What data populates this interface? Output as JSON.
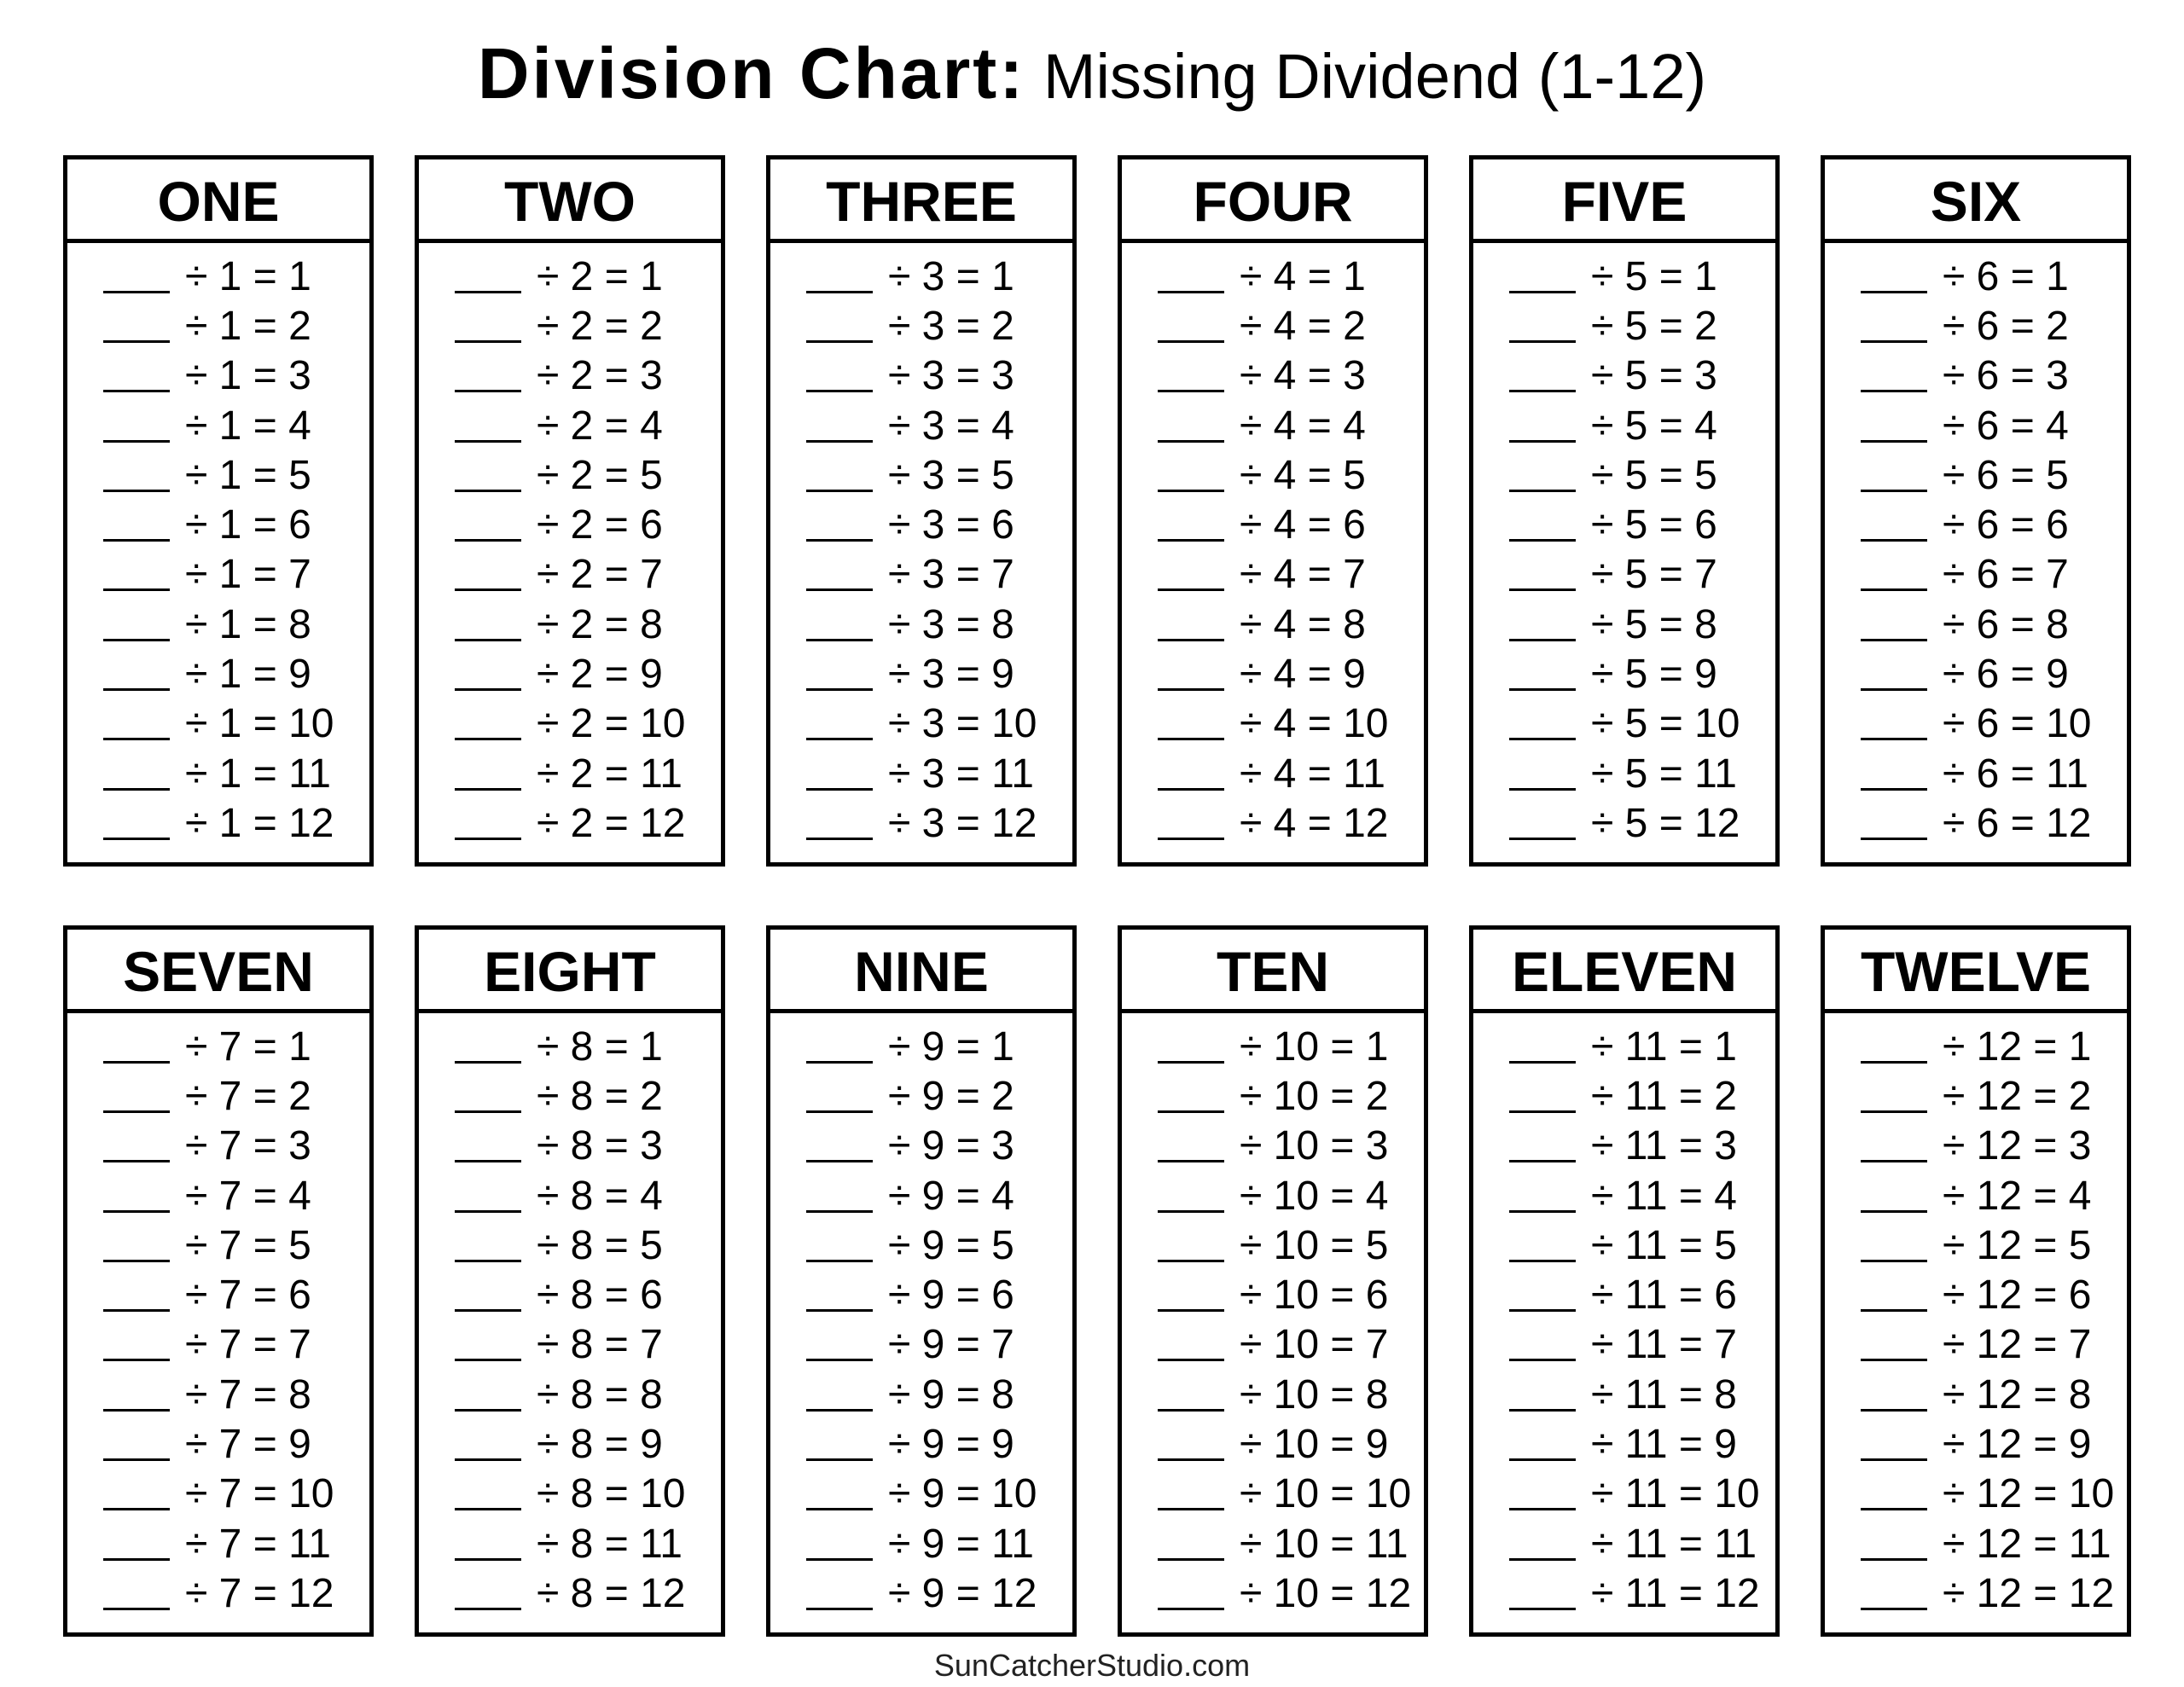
{
  "title": {
    "bold": "Division Chart:",
    "normal": " Missing Dividend (1-12)"
  },
  "footer": "SunCatcherStudio.com",
  "tables": [
    {
      "name": "ONE",
      "rows": [
        "÷ 1 = 1",
        "÷ 1 = 2",
        "÷ 1 = 3",
        "÷ 1 = 4",
        "÷ 1 = 5",
        "÷ 1 = 6",
        "÷ 1 = 7",
        "÷ 1 = 8",
        "÷ 1 = 9",
        "÷ 1 = 10",
        "÷ 1 = 11",
        "÷ 1 = 12"
      ]
    },
    {
      "name": "TWO",
      "rows": [
        "÷ 2 = 1",
        "÷ 2 = 2",
        "÷ 2 = 3",
        "÷ 2 = 4",
        "÷ 2 = 5",
        "÷ 2 = 6",
        "÷ 2 = 7",
        "÷ 2 = 8",
        "÷ 2 = 9",
        "÷ 2 = 10",
        "÷ 2 = 11",
        "÷ 2 = 12"
      ]
    },
    {
      "name": "THREE",
      "rows": [
        "÷ 3 = 1",
        "÷ 3 = 2",
        "÷ 3 = 3",
        "÷ 3 = 4",
        "÷ 3 = 5",
        "÷ 3 = 6",
        "÷ 3 = 7",
        "÷ 3 = 8",
        "÷ 3 = 9",
        "÷ 3 = 10",
        "÷ 3 = 11",
        "÷ 3 = 12"
      ]
    },
    {
      "name": "FOUR",
      "rows": [
        "÷ 4 = 1",
        "÷ 4 = 2",
        "÷ 4 = 3",
        "÷ 4 = 4",
        "÷ 4 = 5",
        "÷ 4 = 6",
        "÷ 4 = 7",
        "÷ 4 = 8",
        "÷ 4 = 9",
        "÷ 4 = 10",
        "÷ 4 = 11",
        "÷ 4 = 12"
      ]
    },
    {
      "name": "FIVE",
      "rows": [
        "÷ 5 = 1",
        "÷ 5 = 2",
        "÷ 5 = 3",
        "÷ 5 = 4",
        "÷ 5 = 5",
        "÷ 5 = 6",
        "÷ 5 = 7",
        "÷ 5 = 8",
        "÷ 5 = 9",
        "÷ 5 = 10",
        "÷ 5 = 11",
        "÷ 5 = 12"
      ]
    },
    {
      "name": "SIX",
      "rows": [
        "÷ 6 = 1",
        "÷ 6 = 2",
        "÷ 6 = 3",
        "÷ 6 = 4",
        "÷ 6 = 5",
        "÷ 6 = 6",
        "÷ 6 = 7",
        "÷ 6 = 8",
        "÷ 6 = 9",
        "÷ 6 = 10",
        "÷ 6 = 11",
        "÷ 6 = 12"
      ]
    },
    {
      "name": "SEVEN",
      "rows": [
        "÷ 7 = 1",
        "÷ 7 = 2",
        "÷ 7 = 3",
        "÷ 7 = 4",
        "÷ 7 = 5",
        "÷ 7 = 6",
        "÷ 7 = 7",
        "÷ 7 = 8",
        "÷ 7 = 9",
        "÷ 7 = 10",
        "÷ 7 = 11",
        "÷ 7 = 12"
      ]
    },
    {
      "name": "EIGHT",
      "rows": [
        "÷ 8 = 1",
        "÷ 8 = 2",
        "÷ 8 = 3",
        "÷ 8 = 4",
        "÷ 8 = 5",
        "÷ 8 = 6",
        "÷ 8 = 7",
        "÷ 8 = 8",
        "÷ 8 = 9",
        "÷ 8 = 10",
        "÷ 8 = 11",
        "÷ 8 = 12"
      ]
    },
    {
      "name": "NINE",
      "rows": [
        "÷ 9 = 1",
        "÷ 9 = 2",
        "÷ 9 = 3",
        "÷ 9 = 4",
        "÷ 9 = 5",
        "÷ 9 = 6",
        "÷ 9 = 7",
        "÷ 9 = 8",
        "÷ 9 = 9",
        "÷ 9 = 10",
        "÷ 9 = 11",
        "÷ 9 = 12"
      ]
    },
    {
      "name": "TEN",
      "rows": [
        "÷ 10 = 1",
        "÷ 10 = 2",
        "÷ 10 = 3",
        "÷ 10 = 4",
        "÷ 10 = 5",
        "÷ 10 = 6",
        "÷ 10 = 7",
        "÷ 10 = 8",
        "÷ 10 = 9",
        "÷ 10 = 10",
        "÷ 10 = 11",
        "÷ 10 = 12"
      ]
    },
    {
      "name": "ELEVEN",
      "rows": [
        "÷ 11 = 1",
        "÷ 11 = 2",
        "÷ 11 = 3",
        "÷ 11 = 4",
        "÷ 11 = 5",
        "÷ 11 = 6",
        "÷ 11 = 7",
        "÷ 11 = 8",
        "÷ 11 = 9",
        "÷ 11 = 10",
        "÷ 11 = 11",
        "÷ 11 = 12"
      ]
    },
    {
      "name": "TWELVE",
      "rows": [
        "÷ 12 = 1",
        "÷ 12 = 2",
        "÷ 12 = 3",
        "÷ 12 = 4",
        "÷ 12 = 5",
        "÷ 12 = 6",
        "÷ 12 = 7",
        "÷ 12 = 8",
        "÷ 12 = 9",
        "÷ 12 = 10",
        "÷ 12 = 11",
        "÷ 12 = 12"
      ]
    }
  ]
}
